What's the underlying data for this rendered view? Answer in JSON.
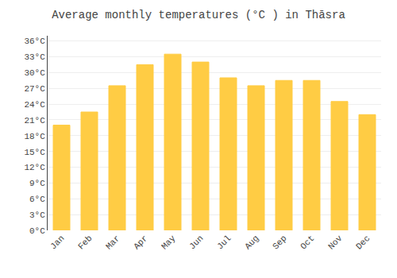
{
  "chart_data": {
    "type": "bar",
    "title": "Average monthly temperatures (°C ) in Thāsra",
    "categories": [
      "Jan",
      "Feb",
      "Mar",
      "Apr",
      "May",
      "Jun",
      "Jul",
      "Aug",
      "Sep",
      "Oct",
      "Nov",
      "Dec"
    ],
    "values": [
      20.0,
      22.5,
      27.5,
      31.5,
      33.5,
      32.0,
      29.0,
      27.5,
      28.5,
      28.5,
      24.5,
      22.0
    ],
    "color": "#FFCC44",
    "ylim": [
      0,
      37
    ],
    "yticks": [
      {
        "value": 0,
        "label": "0°C"
      },
      {
        "value": 3,
        "label": "3°C"
      },
      {
        "value": 6,
        "label": "6°C"
      },
      {
        "value": 9,
        "label": "9°C"
      },
      {
        "value": 12,
        "label": "12°C"
      },
      {
        "value": 15,
        "label": "15°C"
      },
      {
        "value": 18,
        "label": "18°C"
      },
      {
        "value": 21,
        "label": "21°C"
      },
      {
        "value": 24,
        "label": "24°C"
      },
      {
        "value": 27,
        "label": "27°C"
      },
      {
        "value": 30,
        "label": "30°C"
      },
      {
        "value": 33,
        "label": "33°C"
      },
      {
        "value": 36,
        "label": "36°C"
      }
    ],
    "grid": true
  }
}
